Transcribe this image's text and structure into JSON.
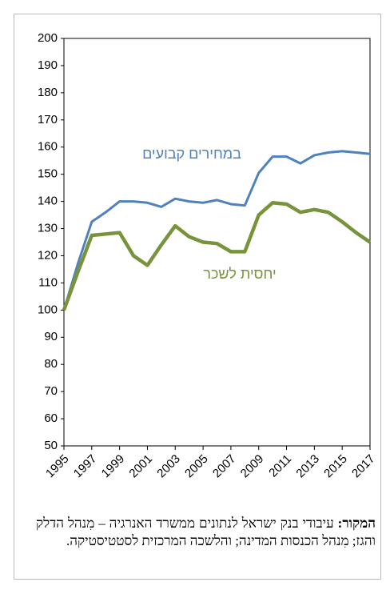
{
  "chart_data": {
    "type": "line",
    "x": [
      1995,
      1996,
      1997,
      1998,
      1999,
      2000,
      2001,
      2002,
      2003,
      2004,
      2005,
      2006,
      2007,
      2008,
      2009,
      2010,
      2011,
      2012,
      2013,
      2014,
      2015,
      2016,
      2017
    ],
    "xlim": [
      1995,
      2017
    ],
    "xticks": [
      1995,
      1997,
      1999,
      2001,
      2003,
      2005,
      2007,
      2009,
      2011,
      2013,
      2015,
      2017
    ],
    "ylim": [
      50,
      200
    ],
    "yticks": [
      50,
      60,
      70,
      80,
      90,
      100,
      110,
      120,
      130,
      140,
      150,
      160,
      170,
      180,
      190,
      200
    ],
    "grid": false,
    "series": [
      {
        "name": "במחירים קבועים",
        "color": "#4f81bd",
        "values": [
          100,
          117,
          132.5,
          136,
          140,
          140,
          139.5,
          138,
          141,
          140,
          139.5,
          140.5,
          139,
          138.5,
          150.5,
          156.5,
          156.5,
          154,
          157,
          158,
          158.5,
          158,
          157.5
        ]
      },
      {
        "name": "יחסית לשכר",
        "color": "#77933c",
        "values": [
          100,
          114,
          127.5,
          128,
          128.5,
          120,
          116.5,
          124,
          131,
          127,
          125,
          124.5,
          121.5,
          121.5,
          135,
          139.5,
          139,
          136,
          137,
          136,
          132.5,
          128.5,
          125
        ]
      }
    ]
  },
  "source": {
    "label": "המקור:",
    "text": "עיבודי בנק ישראל לנתונים ממשרד האנרגיה – מִנהל הדלק והגז; מִנהל הכנסות המדינה; והלשכה המרכזית לסטטיסטיקה."
  }
}
